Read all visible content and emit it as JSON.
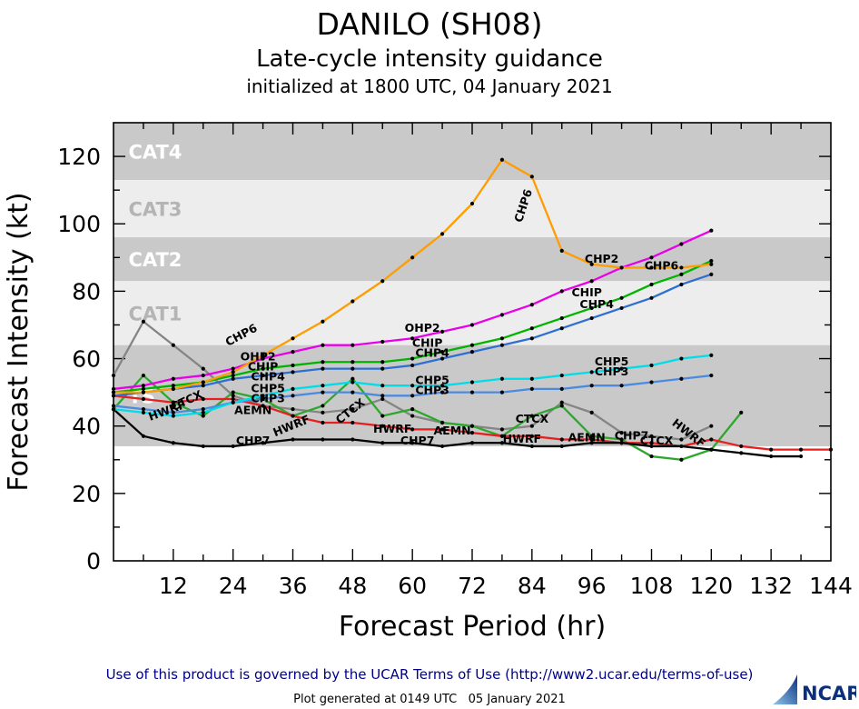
{
  "header": {
    "title": "DANILO (SH08)",
    "subtitle": "Late-cycle intensity guidance",
    "init_line": "initialized at 1800 UTC, 04 January 2021"
  },
  "footer": {
    "terms": "Use of this product is governed by the UCAR Terms of Use (http://www2.ucar.edu/terms-of-use)",
    "generated": "Plot generated at 0149 UTC   05 January 2021",
    "logo_text": "NCAR"
  },
  "chart_data": {
    "type": "line",
    "title": "DANILO (SH08)",
    "subtitle": "Late-cycle intensity guidance",
    "xlabel": "Forecast Period (hr)",
    "ylabel": "Forecast Intensity (kt)",
    "xlim": [
      0,
      144
    ],
    "ylim": [
      0,
      130
    ],
    "x_ticks": [
      12,
      24,
      36,
      48,
      60,
      72,
      84,
      96,
      108,
      120,
      132,
      144
    ],
    "x_minor_step": 6,
    "y_ticks": [
      0,
      20,
      40,
      60,
      80,
      100,
      120
    ],
    "y_minor_step": 10,
    "grid": false,
    "legend": "none (inline line labels)",
    "marker_color": "#000000",
    "bands": [
      {
        "label": "CAT4",
        "from": 113,
        "to": 130,
        "fill": "#c9c9c9",
        "label_color": "#ffffff"
      },
      {
        "label": "CAT3",
        "from": 96,
        "to": 113,
        "fill": "#ededed",
        "label_color": "#b4b4b4"
      },
      {
        "label": "CAT2",
        "from": 83,
        "to": 96,
        "fill": "#c9c9c9",
        "label_color": "#ffffff"
      },
      {
        "label": "CAT1",
        "from": 64,
        "to": 83,
        "fill": "#ededed",
        "label_color": "#b4b4b4"
      },
      {
        "label": "TS",
        "from": 34,
        "to": 64,
        "fill": "#c9c9c9",
        "label_color": "#ffffff"
      }
    ],
    "series": [
      {
        "name": "CTCX",
        "color": "#858585",
        "x": [
          0,
          6,
          12,
          18,
          24,
          30,
          36,
          42,
          48,
          54,
          60,
          66,
          72,
          78,
          84,
          90,
          96,
          102,
          108,
          114,
          120
        ],
        "y": [
          55,
          71,
          64,
          57,
          49,
          46,
          45,
          44,
          45,
          48,
          43,
          41,
          40,
          39,
          40,
          47,
          44,
          38,
          37,
          36,
          40
        ]
      },
      {
        "name": "AEMN",
        "color": "#2ca82c",
        "x": [
          0,
          6,
          12,
          18,
          24,
          30,
          36,
          42,
          48,
          54,
          60,
          66,
          72,
          78,
          84,
          90,
          96,
          102,
          108,
          114,
          120,
          126
        ],
        "y": [
          45,
          55,
          47,
          43,
          50,
          48,
          43,
          46,
          54,
          43,
          45,
          41,
          40,
          37,
          43,
          46,
          37,
          36,
          31,
          30,
          33,
          44
        ]
      },
      {
        "name": "HWRF",
        "color": "#e62020",
        "x": [
          0,
          6,
          12,
          18,
          24,
          30,
          36,
          42,
          48,
          54,
          60,
          66,
          72,
          78,
          84,
          90,
          96,
          102,
          108,
          114,
          120,
          126,
          132,
          138,
          144
        ],
        "y": [
          49,
          48,
          47,
          48,
          48,
          46,
          43,
          41,
          41,
          40,
          39,
          39,
          38,
          37,
          37,
          36,
          36,
          35,
          35,
          34,
          36,
          34,
          33,
          33,
          33
        ]
      },
      {
        "name": "CHP7",
        "color": "#000000",
        "x": [
          0,
          6,
          12,
          18,
          24,
          30,
          36,
          42,
          48,
          54,
          60,
          66,
          72,
          78,
          84,
          90,
          96,
          102,
          108,
          114,
          120,
          126,
          132,
          138
        ],
        "y": [
          45,
          37,
          35,
          34,
          34,
          35,
          36,
          36,
          36,
          35,
          35,
          34,
          35,
          35,
          34,
          34,
          35,
          35,
          34,
          34,
          33,
          32,
          31,
          31
        ]
      },
      {
        "name": "CHP3",
        "color": "#4a8ae0",
        "x": [
          0,
          6,
          12,
          18,
          24,
          30,
          36,
          42,
          48,
          54,
          60,
          66,
          72,
          78,
          84,
          90,
          96,
          102,
          108,
          114,
          120
        ],
        "y": [
          46,
          45,
          44,
          45,
          47,
          48,
          49,
          50,
          50,
          49,
          49,
          50,
          50,
          50,
          51,
          51,
          52,
          52,
          53,
          54,
          55
        ]
      },
      {
        "name": "CHP5",
        "color": "#00dce8",
        "x": [
          0,
          6,
          12,
          18,
          24,
          30,
          36,
          42,
          48,
          54,
          60,
          66,
          72,
          78,
          84,
          90,
          96,
          102,
          108,
          114,
          120
        ],
        "y": [
          45,
          44,
          43,
          44,
          47,
          49,
          51,
          52,
          53,
          52,
          52,
          52,
          53,
          54,
          54,
          55,
          56,
          57,
          58,
          60,
          61
        ]
      },
      {
        "name": "CHP4",
        "color": "#2e6fd1",
        "x": [
          0,
          6,
          12,
          18,
          24,
          30,
          36,
          42,
          48,
          54,
          60,
          66,
          72,
          78,
          84,
          90,
          96,
          102,
          108,
          114,
          120
        ],
        "y": [
          49,
          50,
          51,
          52,
          54,
          55,
          56,
          57,
          57,
          57,
          58,
          60,
          62,
          64,
          66,
          69,
          72,
          75,
          78,
          82,
          85
        ]
      },
      {
        "name": "CHIP",
        "color": "#00b400",
        "x": [
          0,
          6,
          12,
          18,
          24,
          30,
          36,
          42,
          48,
          54,
          60,
          66,
          72,
          78,
          84,
          90,
          96,
          102,
          108,
          114,
          120
        ],
        "y": [
          50,
          51,
          52,
          53,
          55,
          57,
          58,
          59,
          59,
          59,
          60,
          62,
          64,
          66,
          69,
          72,
          75,
          78,
          82,
          85,
          89
        ]
      },
      {
        "name": "OHP2",
        "color": "#e800e8",
        "x": [
          0,
          6,
          12,
          18,
          24,
          30,
          36,
          42,
          48,
          54,
          60,
          66,
          72,
          78,
          84,
          90,
          96,
          102,
          108,
          114,
          120
        ],
        "y": [
          51,
          52,
          54,
          55,
          57,
          60,
          62,
          64,
          64,
          65,
          66,
          68,
          70,
          73,
          76,
          80,
          83,
          87,
          90,
          94,
          98
        ]
      },
      {
        "name": "CHP6",
        "color": "#ff9c00",
        "x": [
          0,
          6,
          12,
          18,
          24,
          30,
          36,
          42,
          48,
          54,
          60,
          66,
          72,
          78,
          84,
          90,
          96,
          102,
          108,
          114,
          120
        ],
        "y": [
          50,
          50,
          51,
          53,
          56,
          61,
          66,
          71,
          77,
          83,
          90,
          97,
          106,
          119,
          114,
          92,
          88,
          87,
          87,
          87,
          88
        ]
      }
    ],
    "annotations": [
      {
        "text": "CHP6",
        "x": 26,
        "y": 66,
        "rot": -28
      },
      {
        "text": "OHP2",
        "x": 29,
        "y": 59.5,
        "rot": 0
      },
      {
        "text": "CHIP",
        "x": 30,
        "y": 56.5,
        "rot": 0
      },
      {
        "text": "CHP4",
        "x": 31,
        "y": 53.5,
        "rot": 0
      },
      {
        "text": "CHP5",
        "x": 31,
        "y": 50,
        "rot": 0
      },
      {
        "text": "CHP3",
        "x": 31,
        "y": 47,
        "rot": 0
      },
      {
        "text": "CTCX",
        "x": 15,
        "y": 46.5,
        "rot": -25
      },
      {
        "text": "HWRF",
        "x": 11,
        "y": 43.5,
        "rot": -20
      },
      {
        "text": "AEMN",
        "x": 28,
        "y": 43.5,
        "rot": 0
      },
      {
        "text": "HWRF",
        "x": 36,
        "y": 39,
        "rot": -22
      },
      {
        "text": "CHP7",
        "x": 28,
        "y": 34.5,
        "rot": 0
      },
      {
        "text": "CTCX",
        "x": 48,
        "y": 43.5,
        "rot": -38
      },
      {
        "text": "HWRF",
        "x": 56,
        "y": 38,
        "rot": 0
      },
      {
        "text": "CHP7",
        "x": 61,
        "y": 34.5,
        "rot": 0
      },
      {
        "text": "OHP2",
        "x": 62,
        "y": 68,
        "rot": 0
      },
      {
        "text": "CHIP",
        "x": 63,
        "y": 63.5,
        "rot": 0
      },
      {
        "text": "CHP4",
        "x": 64,
        "y": 60.5,
        "rot": 0
      },
      {
        "text": "CHP5",
        "x": 64,
        "y": 52.5,
        "rot": 0
      },
      {
        "text": "CHP3",
        "x": 64,
        "y": 49.5,
        "rot": 0
      },
      {
        "text": "AEMN",
        "x": 68,
        "y": 37.5,
        "rot": 0
      },
      {
        "text": "CHP6",
        "x": 83,
        "y": 105,
        "rot": -72
      },
      {
        "text": "CTCX",
        "x": 84,
        "y": 41,
        "rot": 0
      },
      {
        "text": "HWRF",
        "x": 82,
        "y": 35,
        "rot": 0
      },
      {
        "text": "CHP2",
        "x": 98,
        "y": 88.5,
        "rot": 0
      },
      {
        "text": "CHIP",
        "x": 95,
        "y": 78.5,
        "rot": 0
      },
      {
        "text": "CHP4",
        "x": 97,
        "y": 75,
        "rot": 0
      },
      {
        "text": "CHP5",
        "x": 100,
        "y": 58,
        "rot": 0
      },
      {
        "text": "CHP3",
        "x": 100,
        "y": 55,
        "rot": 0
      },
      {
        "text": "CHP6",
        "x": 110,
        "y": 86.5,
        "rot": 0
      },
      {
        "text": "AEMN",
        "x": 95,
        "y": 35.5,
        "rot": 0
      },
      {
        "text": "CHP7",
        "x": 104,
        "y": 36,
        "rot": 0
      },
      {
        "text": "CTCX",
        "x": 109,
        "y": 34.5,
        "rot": 0
      },
      {
        "text": "HWRF",
        "x": 115,
        "y": 37,
        "rot": 38
      }
    ]
  }
}
